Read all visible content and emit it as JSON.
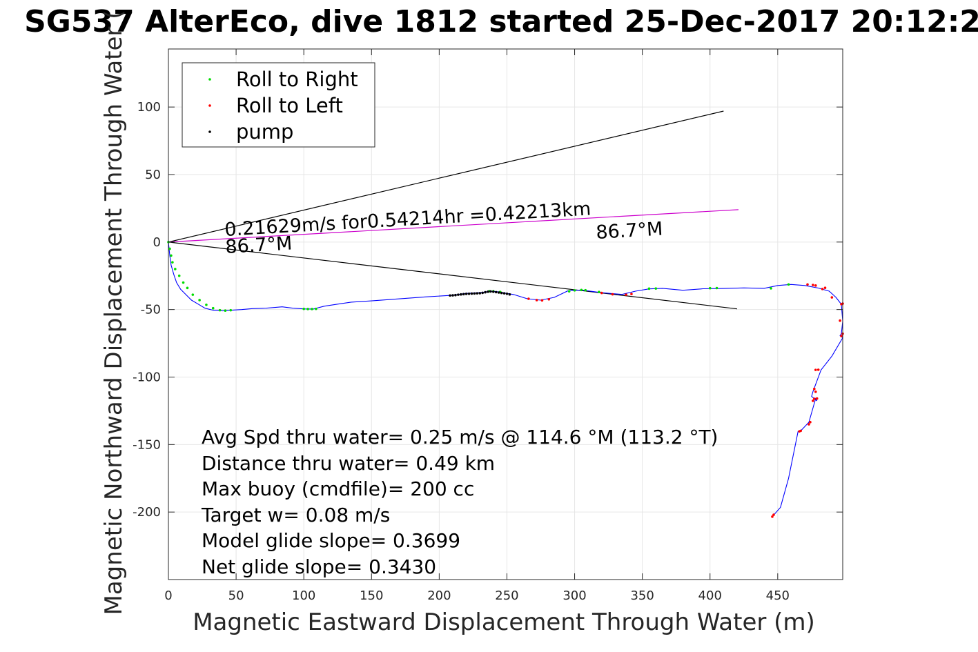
{
  "chart_data": {
    "type": "scatter",
    "title": "SG537 AlterEco, dive 1812 started 25-Dec-2017 20:12:2",
    "xlabel": "Magnetic Eastward Displacement Through Water (m)",
    "ylabel": "Magnetic Northward Displacement Through Water (",
    "xlim": [
      0,
      498
    ],
    "ylim": [
      -250,
      143
    ],
    "grid": true,
    "x_ticks": [
      0,
      50,
      100,
      150,
      200,
      250,
      300,
      350,
      400,
      450
    ],
    "x_tick_labels": [
      "0",
      "50",
      "100",
      "150",
      "200",
      "250",
      "300",
      "350",
      "400",
      "450"
    ],
    "y_ticks": [
      100,
      50,
      0,
      -50,
      -100,
      -150,
      -200
    ],
    "y_tick_labels": [
      "100",
      "50",
      "0",
      "-50",
      "-100",
      "-150",
      "-200"
    ],
    "legend": {
      "position": "top-left",
      "entries": [
        {
          "label": "Roll to Right",
          "color": "#00dd00"
        },
        {
          "label": "Roll to Left",
          "color": "#ff0000"
        },
        {
          "label": "pump",
          "color": "#000000"
        }
      ]
    },
    "track": {
      "name": "",
      "color": "#0000ff",
      "x": [
        0,
        1,
        2,
        4,
        6,
        9,
        13,
        17,
        22,
        27,
        33,
        40,
        47,
        54,
        62,
        72,
        84,
        92,
        100,
        107,
        115,
        125,
        135,
        150,
        170,
        190,
        210,
        220,
        230,
        238,
        243,
        248,
        255,
        265,
        275,
        285,
        295,
        305,
        320,
        335,
        345,
        355,
        365,
        380,
        395,
        410,
        425,
        440,
        450,
        460,
        470,
        480,
        488,
        493,
        497,
        498,
        497,
        496,
        498,
        490,
        482,
        476,
        475,
        479,
        478,
        473,
        467,
        465,
        458,
        452,
        446
      ],
      "y": [
        0,
        -10,
        -17,
        -24,
        -30,
        -35,
        -39,
        -43,
        -46,
        -49,
        -50.5,
        -51,
        -50.5,
        -50,
        -49.3,
        -49,
        -48,
        -49,
        -49.5,
        -49.6,
        -47.5,
        -46,
        -44.5,
        -43.6,
        -42.1,
        -40.6,
        -39.4,
        -38,
        -37.5,
        -36.5,
        -36.8,
        -37.7,
        -38.9,
        -42,
        -43,
        -41,
        -36.2,
        -35.5,
        -37.5,
        -38.8,
        -36.4,
        -34.7,
        -34.3,
        -35.7,
        -34.6,
        -34.4,
        -34,
        -34.3,
        -32.2,
        -31.4,
        -32.2,
        -34.1,
        -36.4,
        -41,
        -46.1,
        -58.6,
        -67.9,
        -69.4,
        -70.9,
        -84.5,
        -94.7,
        -110.9,
        -114.3,
        -117.6,
        -115.9,
        -133.5,
        -139.8,
        -140.3,
        -175.1,
        -196.5,
        -203.4
      ]
    },
    "roll_right_points": {
      "x": [
        0,
        1,
        2,
        3,
        5,
        8,
        11,
        14,
        18,
        23,
        28,
        33,
        38,
        42,
        46,
        100,
        103,
        106,
        109,
        237,
        240,
        245,
        296,
        300,
        305,
        308,
        318,
        355,
        360,
        400,
        405,
        445,
        458
      ],
      "y": [
        0,
        -5,
        -10,
        -15,
        -20,
        -25,
        -30,
        -34,
        -39,
        -43,
        -46.5,
        -49,
        -50.5,
        -50.8,
        -50.5,
        -49.5,
        -49.6,
        -49.6,
        -49.5,
        -36.4,
        -36.5,
        -37,
        -36.5,
        -35.8,
        -35.5,
        -35.7,
        -37,
        -34.5,
        -34.4,
        -34.2,
        -34.1,
        -34.3,
        -31.4
      ]
    },
    "roll_left_points": {
      "x": [
        266,
        272,
        276,
        281,
        320,
        328,
        338,
        342,
        446,
        447,
        466,
        467,
        473,
        474,
        476,
        477,
        479,
        480,
        478,
        477,
        478,
        498,
        497,
        496,
        497,
        498,
        490,
        483,
        478,
        485,
        476,
        472
      ],
      "y": [
        -42,
        -43,
        -43.2,
        -42.4,
        -37.7,
        -38.7,
        -39,
        -38.5,
        -203.4,
        -202,
        -140.2,
        -139.8,
        -135,
        -133.4,
        -117.6,
        -116.1,
        -115.9,
        -94.6,
        -110.9,
        -108.8,
        -94.7,
        -67.9,
        -69.6,
        -58.2,
        -46,
        -45.6,
        -41,
        -34.8,
        -32.2,
        -33.9,
        -31.8,
        -31.4
      ]
    },
    "pump_points": {
      "x": [
        208,
        210,
        212,
        214,
        216,
        218,
        220,
        222,
        224,
        226,
        228,
        230,
        232,
        234,
        236,
        238,
        240,
        242,
        244,
        246,
        248,
        250,
        252
      ],
      "y": [
        -39.6,
        -39.5,
        -39.3,
        -39,
        -38.8,
        -38.6,
        -38.4,
        -38.3,
        -38.2,
        -38.1,
        -38,
        -37.9,
        -37.6,
        -37.2,
        -36.8,
        -36.6,
        -36.8,
        -37.1,
        -37.4,
        -37.7,
        -38,
        -38.3,
        -38.8
      ]
    },
    "reference_lines": [
      {
        "name": "",
        "color": "#000000",
        "x": [
          0,
          410
        ],
        "y": [
          0,
          97
        ]
      },
      {
        "name": "",
        "color": "#000000",
        "x": [
          0,
          420
        ],
        "y": [
          0,
          -49.5
        ]
      },
      {
        "name": "",
        "color": "#cc00cc",
        "x": [
          0,
          421
        ],
        "y": [
          0,
          24
        ]
      }
    ],
    "annotations": {
      "speed_text": "0.21629m/s for0.54214hr =0.42213km",
      "heading_start": "86.7°M",
      "heading_end": "86.7°M"
    },
    "stats": [
      "Avg Spd thru water=  0.25 m/s @ 114.6 °M (113.2 °T)",
      "Distance thru water=  0.49 km",
      "Max buoy (cmdfile)= 200 cc",
      "Target w= 0.08 m/s",
      "Model glide slope= 0.3699",
      "Net glide slope= 0.3430"
    ]
  }
}
